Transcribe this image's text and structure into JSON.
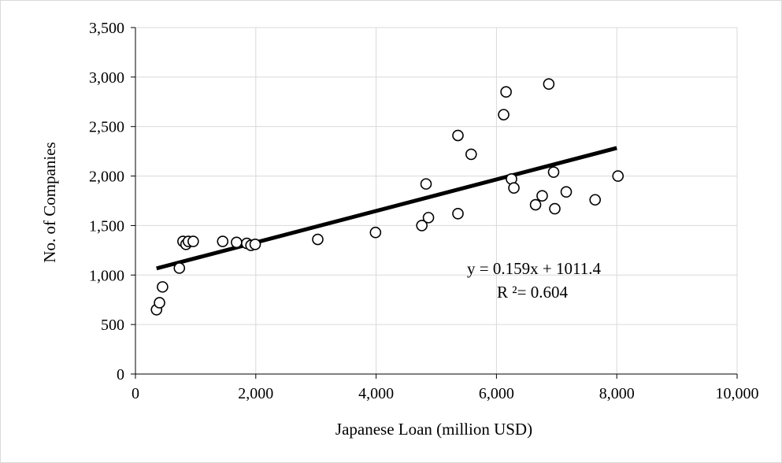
{
  "chart_data": {
    "type": "scatter",
    "title": "",
    "xlabel": "Japanese Loan (million USD)",
    "ylabel": "No. of Companies",
    "xlim": [
      0,
      10000
    ],
    "ylim": [
      0,
      3500
    ],
    "x_ticks": [
      0,
      2000,
      4000,
      6000,
      8000,
      10000
    ],
    "y_ticks": [
      0,
      500,
      1000,
      1500,
      2000,
      2500,
      3000,
      3500
    ],
    "x_tick_labels": [
      "0",
      "2,000",
      "4,000",
      "6,000",
      "8,000",
      "10,000"
    ],
    "y_tick_labels": [
      "0",
      "500",
      "1,000",
      "1,500",
      "2,000",
      "2,500",
      "3,000",
      "3,500"
    ],
    "grid": true,
    "legend": "none",
    "marker": "open-circle",
    "points": [
      {
        "x": 350,
        "y": 650
      },
      {
        "x": 400,
        "y": 720
      },
      {
        "x": 450,
        "y": 880
      },
      {
        "x": 730,
        "y": 1070
      },
      {
        "x": 790,
        "y": 1340
      },
      {
        "x": 840,
        "y": 1310
      },
      {
        "x": 880,
        "y": 1340
      },
      {
        "x": 960,
        "y": 1340
      },
      {
        "x": 1450,
        "y": 1340
      },
      {
        "x": 1680,
        "y": 1330
      },
      {
        "x": 1850,
        "y": 1320
      },
      {
        "x": 1920,
        "y": 1300
      },
      {
        "x": 1990,
        "y": 1310
      },
      {
        "x": 3030,
        "y": 1360
      },
      {
        "x": 3990,
        "y": 1430
      },
      {
        "x": 4760,
        "y": 1500
      },
      {
        "x": 4830,
        "y": 1920
      },
      {
        "x": 4870,
        "y": 1580
      },
      {
        "x": 5360,
        "y": 1620
      },
      {
        "x": 5360,
        "y": 2410
      },
      {
        "x": 5580,
        "y": 2220
      },
      {
        "x": 6120,
        "y": 2620
      },
      {
        "x": 6160,
        "y": 2850
      },
      {
        "x": 6250,
        "y": 1970
      },
      {
        "x": 6290,
        "y": 1880
      },
      {
        "x": 6650,
        "y": 1710
      },
      {
        "x": 6760,
        "y": 1800
      },
      {
        "x": 6870,
        "y": 2930
      },
      {
        "x": 6950,
        "y": 2040
      },
      {
        "x": 6970,
        "y": 1670
      },
      {
        "x": 7160,
        "y": 1840
      },
      {
        "x": 7640,
        "y": 1760
      },
      {
        "x": 8020,
        "y": 2000
      }
    ],
    "trendline": {
      "type": "linear",
      "slope": 0.159,
      "intercept": 1011.4,
      "x_start": 350,
      "x_end": 8000,
      "equation_label": "y = 0.159x + 1011.4",
      "r2_label": "R ²= 0.604"
    },
    "colors": {
      "grid": "#d9d9d9",
      "axis": "#000000",
      "marker_edge": "#000000",
      "marker_fill": "#ffffff",
      "trendline": "#000000"
    }
  }
}
